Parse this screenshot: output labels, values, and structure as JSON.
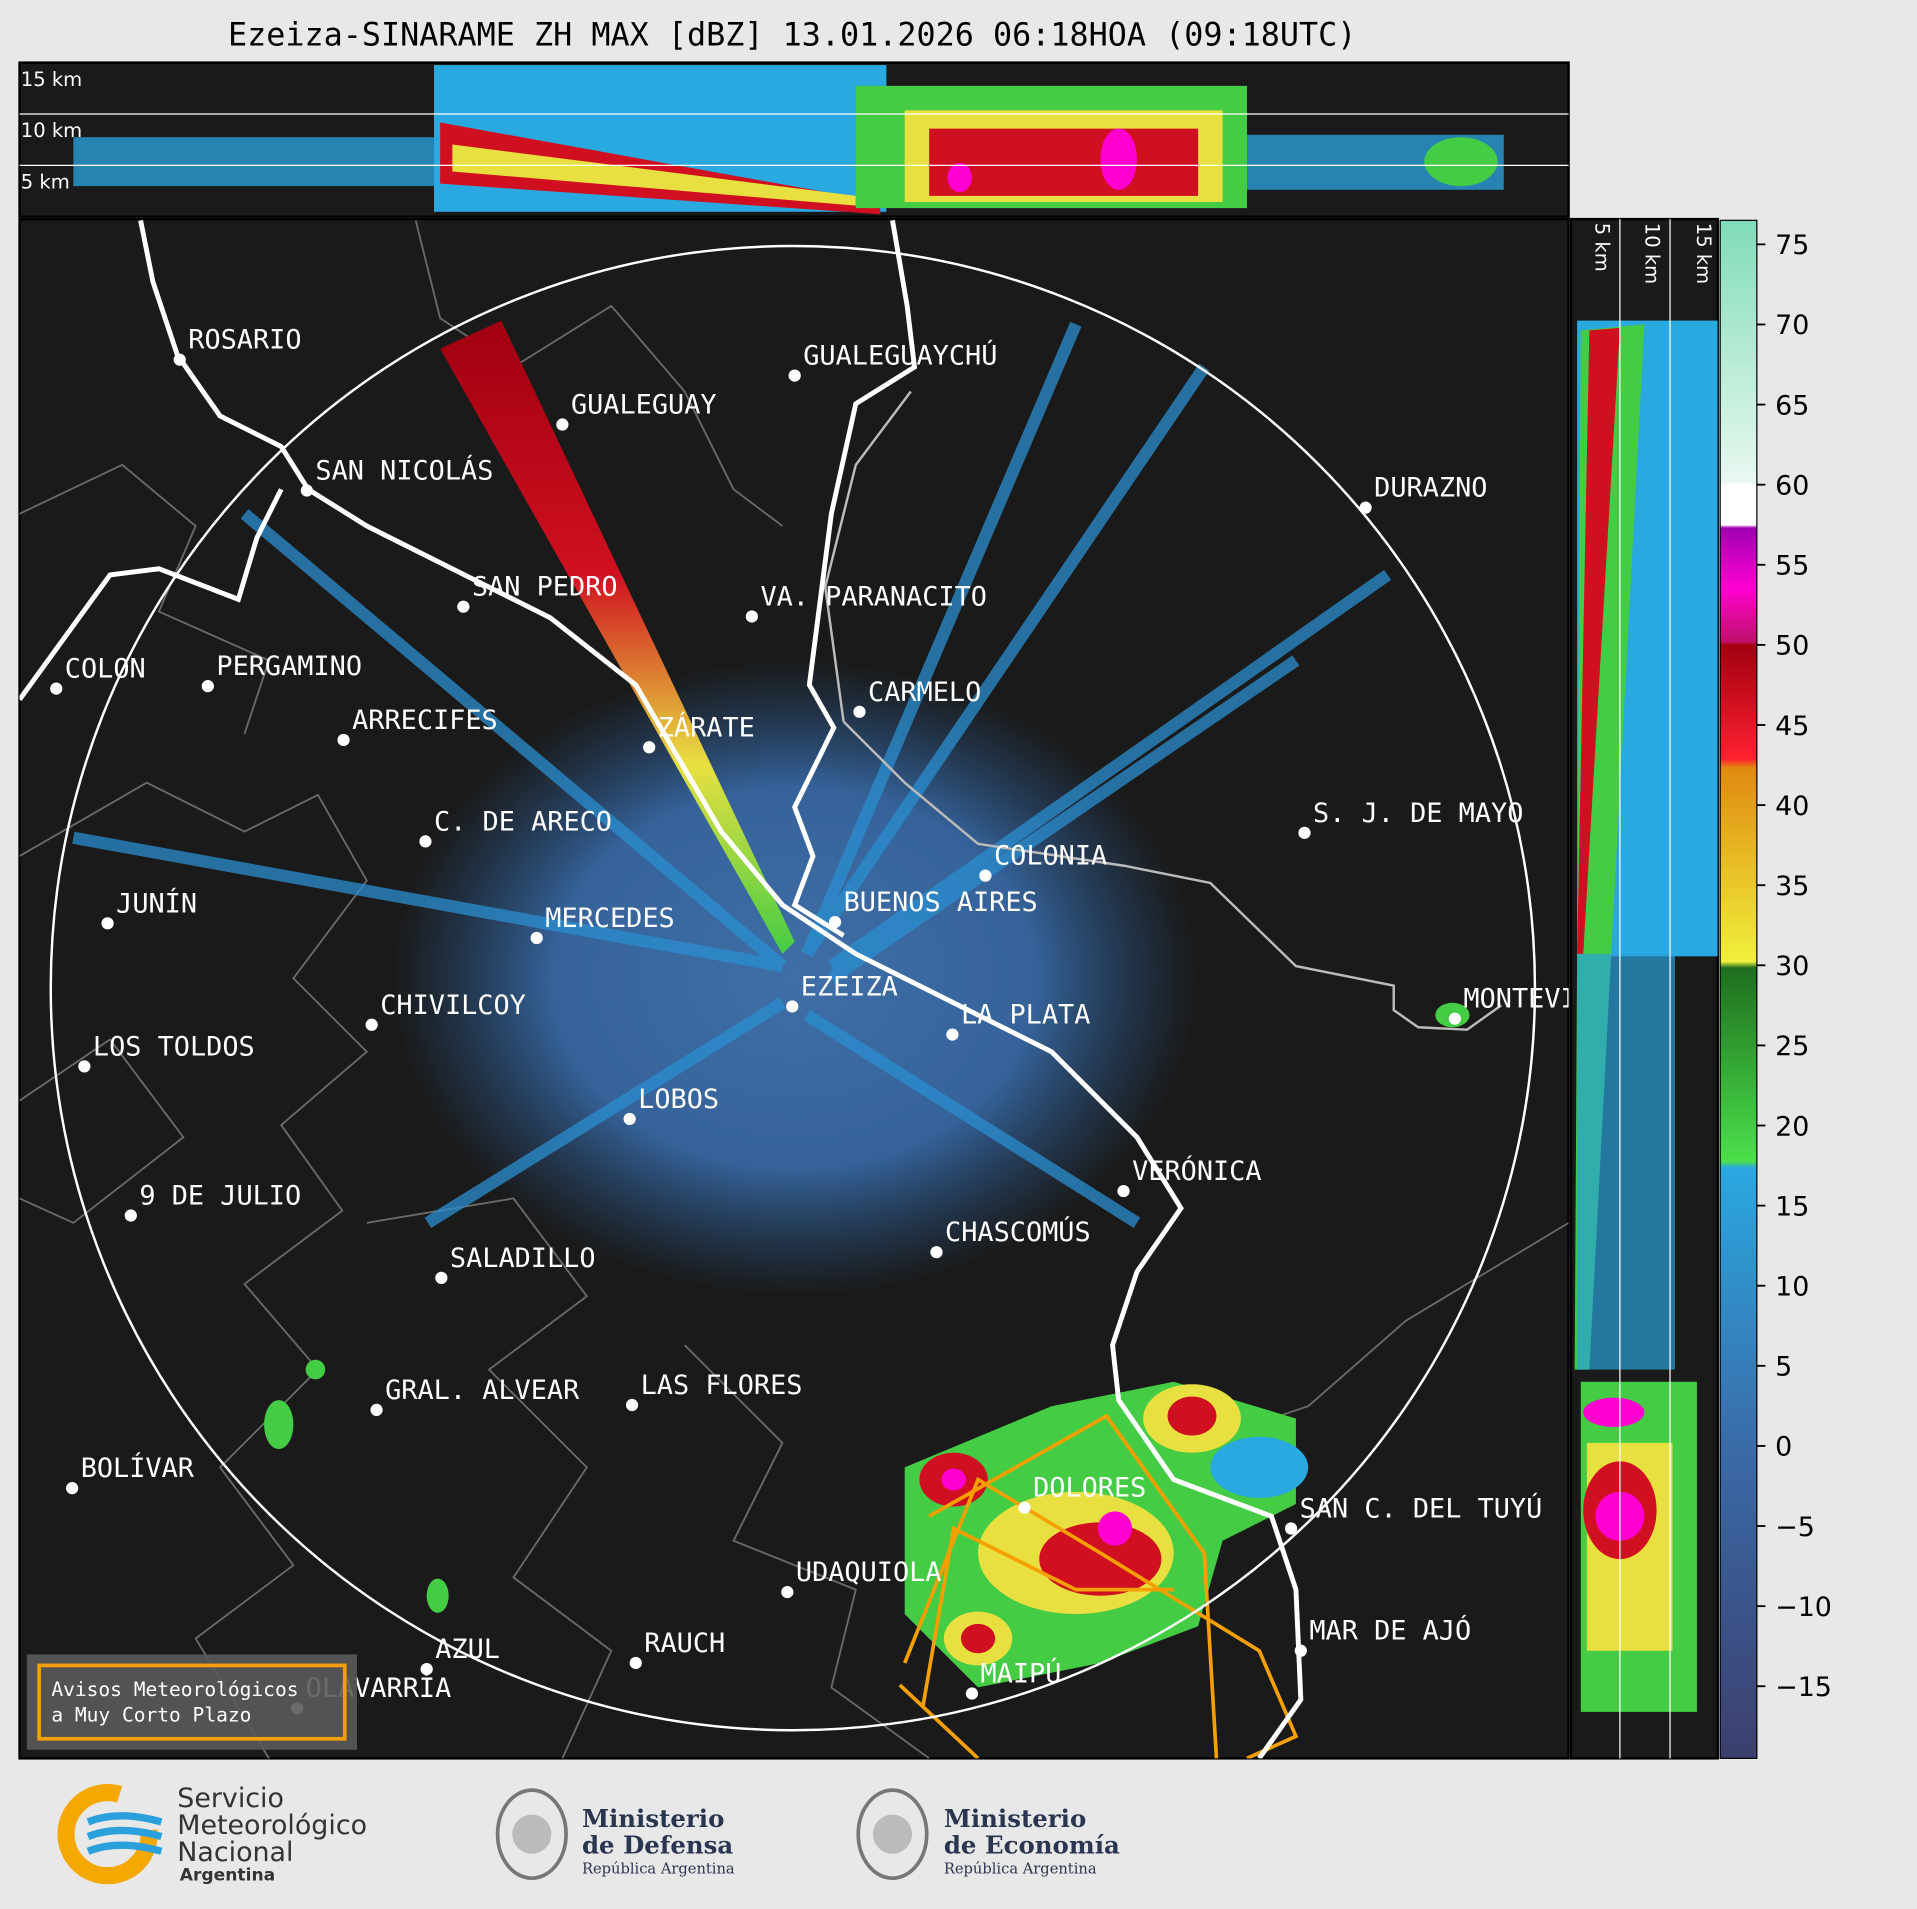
{
  "title": "Ezeiza-SINARAME ZH MAX [dBZ] 13.01.2026 06:18HOA (09:18UTC)",
  "top_panel": {
    "height_labels": [
      "15 km",
      "10 km",
      "5 km"
    ]
  },
  "side_panel": {
    "height_labels": [
      "5 km",
      "10 km",
      "15 km"
    ]
  },
  "map": {
    "cities": [
      "ROSARIO",
      "GUALEGUAY",
      "GUALEGUAYCHÚ",
      "SAN NICOLÁS",
      "DURAZNO",
      "SAN PEDRO",
      "VA. PARANACITO",
      "COLON",
      "PERGAMINO",
      "CARMELO",
      "ARRECIFES",
      "ZÁRATE",
      "S. J. DE MAYO",
      "C. DE ARECO",
      "COLONIA",
      "BUENOS AIRES",
      "JUNÍN",
      "MERCEDES",
      "EZEIZA",
      "MONTEVIDEO",
      "CHIVILCOY",
      "LA PLATA",
      "LOS TOLDOS",
      "LOBOS",
      "VERÓNICA",
      "9 DE JULIO",
      "CHASCOMÚS",
      "SALADILLO",
      "GRAL. ALVEAR",
      "LAS FLORES",
      "BOLÍVAR",
      "DOLORES",
      "SAN C. DEL TUYÚ",
      "UDAQUIOLA",
      "MAR DE AJÓ",
      "RAUCH",
      "AZUL",
      "OLAVARRÍA",
      "MAIPÚ"
    ]
  },
  "legend": {
    "lines": [
      "Avisos Meteorológicos",
      "a Muy Corto Plazo"
    ]
  },
  "colorbar": {
    "lim": [
      -19.5,
      76.5
    ],
    "ticks": [
      75,
      70,
      65,
      60,
      55,
      50,
      45,
      40,
      35,
      30,
      25,
      20,
      15,
      10,
      5,
      0,
      {
        "value": -5,
        "label": "−5"
      },
      {
        "value": -10,
        "label": "−10"
      },
      {
        "value": -15,
        "label": "−15"
      }
    ]
  },
  "logos": {
    "smn": [
      "Servicio",
      "Meteorológico",
      "Nacional",
      "Argentina"
    ],
    "defensa": [
      "Ministerio",
      "de Defensa",
      "República Argentina"
    ],
    "economia": [
      "Ministerio",
      "de Economía",
      "República Argentina"
    ]
  }
}
